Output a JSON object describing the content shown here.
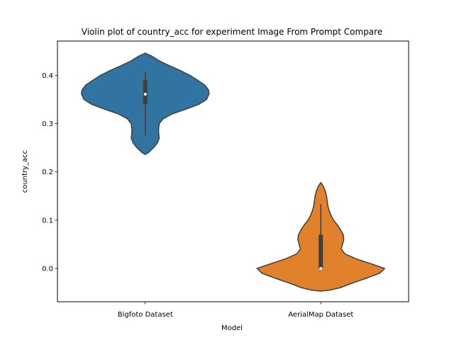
{
  "chart_data": {
    "type": "violin",
    "title": "Violin plot of country_acc for experiment Image From Prompt Compare",
    "xlabel": "Model",
    "ylabel": "country_acc",
    "ylim": [
      -0.069,
      0.471
    ],
    "yticks": [
      0.0,
      0.1,
      0.2,
      0.3,
      0.4
    ],
    "ytick_labels": [
      "0.0",
      "0.1",
      "0.2",
      "0.3",
      "0.4"
    ],
    "grid": false,
    "categories": [
      "Bigfoto Dataset",
      "AerialMap Dataset"
    ],
    "series": [
      {
        "category": "Bigfoto Dataset",
        "color": "#3274a1",
        "min": 0.276,
        "q1": 0.34,
        "median": 0.361,
        "q3": 0.39,
        "max": 0.406,
        "density": [
          [
            0.446,
            0.0
          ],
          [
            0.44,
            0.1
          ],
          [
            0.43,
            0.22
          ],
          [
            0.42,
            0.38
          ],
          [
            0.41,
            0.55
          ],
          [
            0.4,
            0.7
          ],
          [
            0.39,
            0.82
          ],
          [
            0.38,
            0.93
          ],
          [
            0.37,
            0.99
          ],
          [
            0.362,
            1.0
          ],
          [
            0.35,
            0.96
          ],
          [
            0.34,
            0.84
          ],
          [
            0.33,
            0.64
          ],
          [
            0.32,
            0.42
          ],
          [
            0.31,
            0.28
          ],
          [
            0.3,
            0.22
          ],
          [
            0.29,
            0.21
          ],
          [
            0.28,
            0.21
          ],
          [
            0.27,
            0.22
          ],
          [
            0.26,
            0.19
          ],
          [
            0.25,
            0.13
          ],
          [
            0.24,
            0.05
          ],
          [
            0.236,
            0.0
          ]
        ]
      },
      {
        "category": "AerialMap Dataset",
        "color": "#e1812c",
        "min": 0.0,
        "q1": 0.0,
        "median": 0.0,
        "q3": 0.07,
        "max": 0.133,
        "density": [
          [
            0.178,
            0.0
          ],
          [
            0.17,
            0.04
          ],
          [
            0.16,
            0.07
          ],
          [
            0.15,
            0.09
          ],
          [
            0.14,
            0.1
          ],
          [
            0.13,
            0.11
          ],
          [
            0.12,
            0.13
          ],
          [
            0.11,
            0.16
          ],
          [
            0.1,
            0.2
          ],
          [
            0.09,
            0.26
          ],
          [
            0.08,
            0.31
          ],
          [
            0.07,
            0.35
          ],
          [
            0.06,
            0.36
          ],
          [
            0.05,
            0.34
          ],
          [
            0.04,
            0.32
          ],
          [
            0.03,
            0.38
          ],
          [
            0.02,
            0.55
          ],
          [
            0.01,
            0.78
          ],
          [
            0.0,
            1.0
          ],
          [
            -0.01,
            0.92
          ],
          [
            -0.02,
            0.72
          ],
          [
            -0.03,
            0.5
          ],
          [
            -0.04,
            0.3
          ],
          [
            -0.045,
            0.14
          ],
          [
            -0.047,
            0.0
          ]
        ]
      }
    ]
  }
}
